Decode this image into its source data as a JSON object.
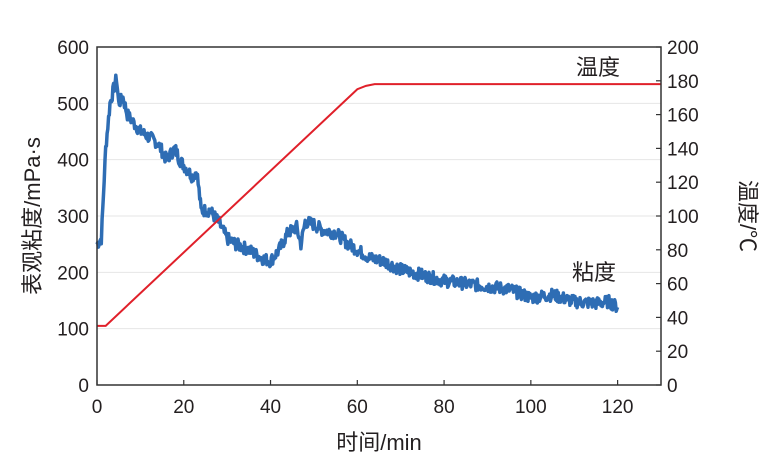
{
  "chart_data": {
    "type": "line",
    "xlabel": "时间/min",
    "ylabel": "表观粘度/mPa·s",
    "y2label": "温度/℃",
    "xlim": [
      0,
      130
    ],
    "ylim": [
      0,
      600
    ],
    "y2lim": [
      0,
      200
    ],
    "xticks": [
      0,
      20,
      40,
      60,
      80,
      100,
      120
    ],
    "yticks": [
      0,
      100,
      200,
      300,
      400,
      500,
      600
    ],
    "y2ticks": [
      0,
      20,
      40,
      60,
      80,
      100,
      120,
      140,
      160,
      180,
      200
    ],
    "grid": true,
    "series": [
      {
        "name": "粘度",
        "axis": "left",
        "color": "#2e6db4",
        "x": [
          0,
          1,
          2,
          3,
          4,
          4.5,
          5,
          6,
          7,
          8,
          10,
          12,
          14,
          16,
          18,
          19,
          20,
          22,
          23,
          24,
          26,
          28,
          30,
          32,
          35,
          38,
          40,
          42,
          44,
          46,
          47,
          48,
          50,
          52,
          55,
          58,
          60,
          63,
          66,
          70,
          75,
          80,
          85,
          90,
          95,
          100,
          105,
          110,
          115,
          118,
          120
        ],
        "y": [
          250,
          260,
          420,
          500,
          530,
          545,
          500,
          510,
          480,
          470,
          450,
          440,
          430,
          400,
          420,
          400,
          390,
          370,
          380,
          310,
          310,
          290,
          260,
          250,
          240,
          225,
          220,
          240,
          270,
          280,
          250,
          290,
          285,
          275,
          270,
          250,
          240,
          225,
          220,
          205,
          195,
          185,
          180,
          175,
          170,
          155,
          160,
          148,
          145,
          148,
          138
        ]
      },
      {
        "name": "温度",
        "axis": "right",
        "color": "#e0202a",
        "x": [
          0,
          2,
          60,
          62,
          64,
          66,
          130
        ],
        "y": [
          35,
          35,
          175,
          177,
          178,
          178,
          178
        ]
      }
    ]
  }
}
